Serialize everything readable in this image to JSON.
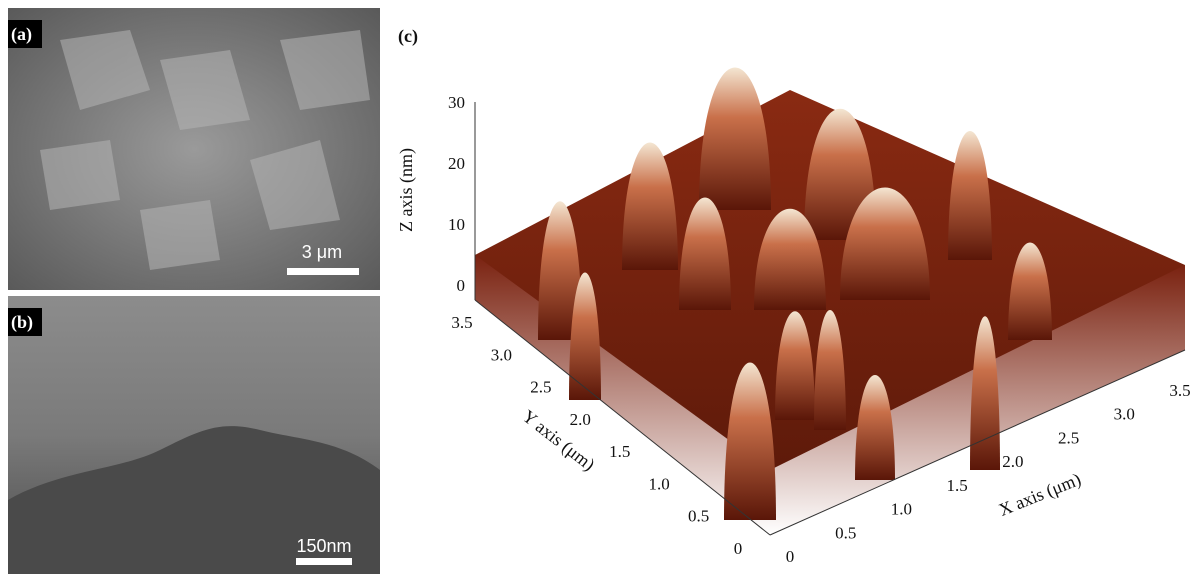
{
  "panels": {
    "a": {
      "label": "(a)",
      "scale_bar": "3 μm"
    },
    "b": {
      "label": "(b)",
      "scale_bar": "150nm"
    },
    "c": {
      "label": "(c)",
      "z_axis": {
        "title": "Z axis (nm)",
        "ticks": [
          "0",
          "10",
          "20",
          "30"
        ]
      },
      "y_axis": {
        "title": "Y axis (μm)",
        "ticks": [
          "0",
          "0.5",
          "1.0",
          "1.5",
          "2.0",
          "2.5",
          "3.0",
          "3.5"
        ]
      },
      "x_axis": {
        "title": "X axis (μm)",
        "ticks": [
          "0",
          "0.5",
          "1.0",
          "1.5",
          "2.0",
          "2.5",
          "3.0",
          "3.5"
        ]
      }
    }
  }
}
